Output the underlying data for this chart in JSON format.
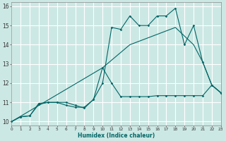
{
  "background_color": "#cce8e4",
  "grid_color": "#ffffff",
  "line_color": "#006666",
  "x_label": "Humidex (Indice chaleur)",
  "xlim": [
    0,
    23
  ],
  "ylim": [
    9.8,
    16.2
  ],
  "yticks": [
    10,
    11,
    12,
    13,
    14,
    15,
    16
  ],
  "xticks": [
    0,
    1,
    2,
    3,
    4,
    5,
    6,
    7,
    8,
    9,
    10,
    11,
    12,
    13,
    14,
    15,
    16,
    17,
    18,
    19,
    20,
    21,
    22,
    23
  ],
  "series1_x": [
    0,
    1,
    2,
    3,
    4,
    5,
    6,
    7,
    8,
    9,
    10,
    11,
    12,
    13,
    14,
    15,
    16,
    17,
    18,
    19,
    20,
    21,
    22,
    23
  ],
  "series1_y": [
    10.0,
    10.25,
    10.3,
    10.95,
    11.0,
    11.0,
    11.0,
    10.85,
    10.7,
    11.15,
    12.0,
    14.9,
    14.8,
    15.5,
    15.0,
    15.0,
    15.5,
    15.5,
    15.9,
    14.0,
    15.0,
    13.1,
    11.9,
    11.5
  ],
  "series2_x": [
    0,
    1,
    2,
    3,
    4,
    5,
    6,
    7,
    8,
    9,
    10,
    11,
    12,
    13,
    14,
    15,
    16,
    17,
    18,
    19,
    20,
    21,
    22,
    23
  ],
  "series2_y": [
    10.0,
    10.25,
    10.3,
    10.9,
    11.0,
    11.0,
    10.85,
    10.75,
    10.75,
    11.15,
    12.8,
    12.0,
    11.3,
    11.3,
    11.3,
    11.3,
    11.35,
    11.35,
    11.35,
    11.35,
    11.35,
    11.35,
    11.9,
    11.5
  ],
  "series3_x": [
    0,
    10,
    13,
    18,
    20,
    21,
    22,
    23
  ],
  "series3_y": [
    10.0,
    12.8,
    14.0,
    14.9,
    14.0,
    13.1,
    11.9,
    11.5
  ]
}
